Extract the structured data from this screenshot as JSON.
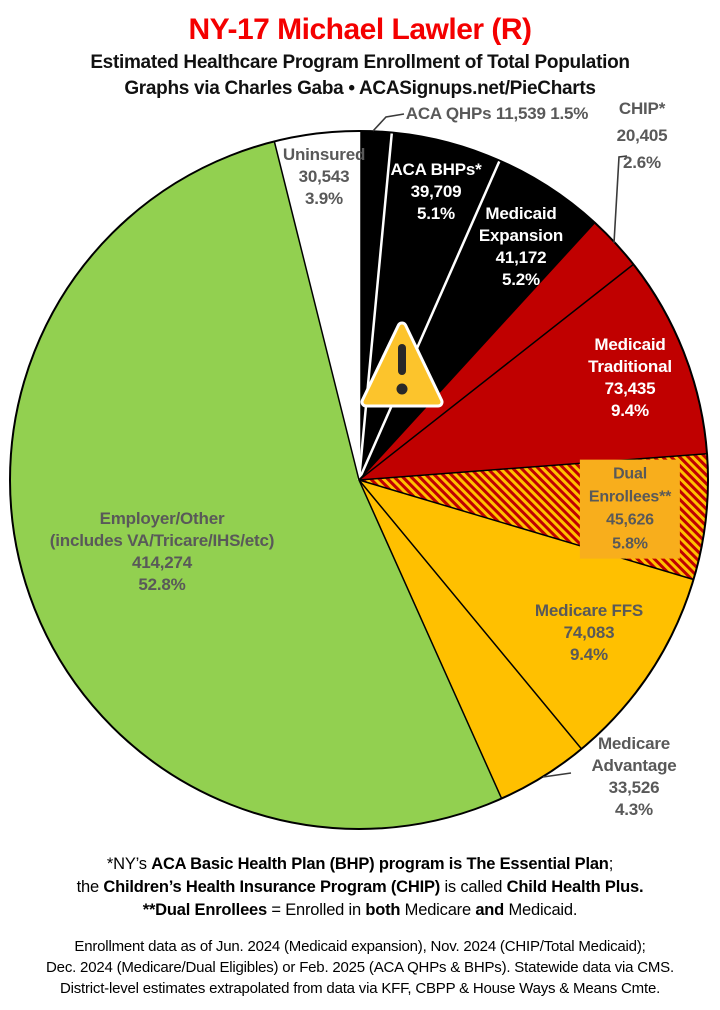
{
  "header": {
    "title": "NY-17 Michael Lawler (R)",
    "subtitle": "Estimated Healthcare Program Enrollment of Total Population",
    "credit": "Graphs via Charles Gaba  •  ACASignups.net/PieCharts"
  },
  "chart_data": {
    "type": "pie",
    "title": "NY-17 Michael Lawler (R)",
    "subtitle": "Estimated Healthcare Program Enrollment of Total Population",
    "start_angle_deg": 0,
    "direction": "clockwise",
    "slices": [
      {
        "id": "aca-qhps",
        "label": "ACA QHPs",
        "value": 11539,
        "pct": 1.5,
        "fill": "#000000",
        "edge": "white",
        "label_placement": "outside-top",
        "display": "ACA QHPs 11,539 1.5%"
      },
      {
        "id": "aca-bhps",
        "label": "ACA BHPs*",
        "value": 39709,
        "pct": 5.1,
        "fill": "#000000",
        "edge": "white",
        "label_placement": "inside",
        "display": "ACA BHPs*\n39,709\n5.1%"
      },
      {
        "id": "medicaid-expansion",
        "label": "Medicaid Expansion",
        "value": 41172,
        "pct": 5.2,
        "fill": "#000000",
        "edge": "white",
        "label_placement": "inside",
        "display": "Medicaid\nExpansion\n41,172\n5.2%"
      },
      {
        "id": "chip",
        "label": "CHIP*",
        "value": 20405,
        "pct": 2.6,
        "fill": "#C00000",
        "edge": "black",
        "label_placement": "outside-top-right",
        "display": "CHIP*\n20,405\n2.6%"
      },
      {
        "id": "medicaid-traditional",
        "label": "Medicaid Traditional",
        "value": 73435,
        "pct": 9.4,
        "fill": "#C00000",
        "edge": "black",
        "label_placement": "inside",
        "display": "Medicaid\nTraditional\n73,435\n9.4%"
      },
      {
        "id": "dual-enrollees",
        "label": "Dual Enrollees**",
        "value": 45626,
        "pct": 5.8,
        "fill": "hatch",
        "hatch_colors": [
          "#FFC000",
          "#C00000"
        ],
        "edge": "black",
        "label_placement": "inside-box",
        "display": "Dual Enrollees**\n45,626 5.8%"
      },
      {
        "id": "medicare-ffs",
        "label": "Medicare FFS",
        "value": 74083,
        "pct": 9.4,
        "fill": "#FFC000",
        "edge": "black",
        "label_placement": "inside",
        "display": "Medicare FFS\n74,083\n9.4%"
      },
      {
        "id": "medicare-advantage",
        "label": "Medicare Advantage",
        "value": 33526,
        "pct": 4.3,
        "fill": "#FFC000",
        "edge": "black",
        "label_placement": "outside-bottom-right",
        "display": "Medicare Advantage\n33,526 4.3%"
      },
      {
        "id": "employer-other",
        "label": "Employer/Other (includes VA/Tricare/IHS/etc)",
        "value": 414274,
        "pct": 52.8,
        "fill": "#92D050",
        "edge": "black",
        "label_placement": "inside",
        "display": "Employer/Other\n(includes VA/Tricare/IHS/etc)\n414,274\n52.8%"
      },
      {
        "id": "uninsured",
        "label": "Uninsured",
        "value": 30543,
        "pct": 3.9,
        "fill": "#FFFFFF",
        "edge": "black",
        "label_placement": "inside",
        "display": "Uninsured\n30,543\n3.9%"
      }
    ],
    "center_icon": "warning-triangle-icon",
    "legend": "none",
    "colors": {
      "title_red": "#F40000",
      "label_gray": "#595959",
      "pie_black": "#000000",
      "pie_red": "#C00000",
      "pie_amber": "#FFC000",
      "pie_green": "#92D050",
      "dual_label_bg": "#F8AE1C",
      "warning_fill": "#FCC42C",
      "warning_mark": "#282828"
    }
  },
  "footnote_definitions": {
    "lines": [
      [
        {
          "t": "*NY’s ",
          "b": 0
        },
        {
          "t": "ACA Basic Health Plan (BHP) program is The Essential Plan",
          "b": 1
        },
        {
          "t": ";",
          "b": 0
        }
      ],
      [
        {
          "t": "the ",
          "b": 0
        },
        {
          "t": "Children’s Health Insurance Program (CHIP)",
          "b": 1
        },
        {
          "t": " is called ",
          "b": 0
        },
        {
          "t": "Child Health Plus.",
          "b": 1
        }
      ],
      [
        {
          "t": "**Dual Enrollees",
          "b": 1
        },
        {
          "t": " = Enrolled in ",
          "b": 0
        },
        {
          "t": "both",
          "b": 1
        },
        {
          "t": " Medicare ",
          "b": 0
        },
        {
          "t": "and",
          "b": 1
        },
        {
          "t": " Medicaid.",
          "b": 0
        }
      ]
    ]
  },
  "footnote_source": {
    "lines": [
      "Enrollment data as of Jun. 2024 (Medicaid expansion), Nov. 2024 (CHIP/Total Medicaid);",
      "Dec. 2024 (Medicare/Dual Eligibles) or Feb. 2025 (ACA QHPs & BHPs). Statewide data via CMS.",
      "District-level estimates extrapolated from data via KFF, CBPP & House Ways & Means Cmte."
    ]
  }
}
